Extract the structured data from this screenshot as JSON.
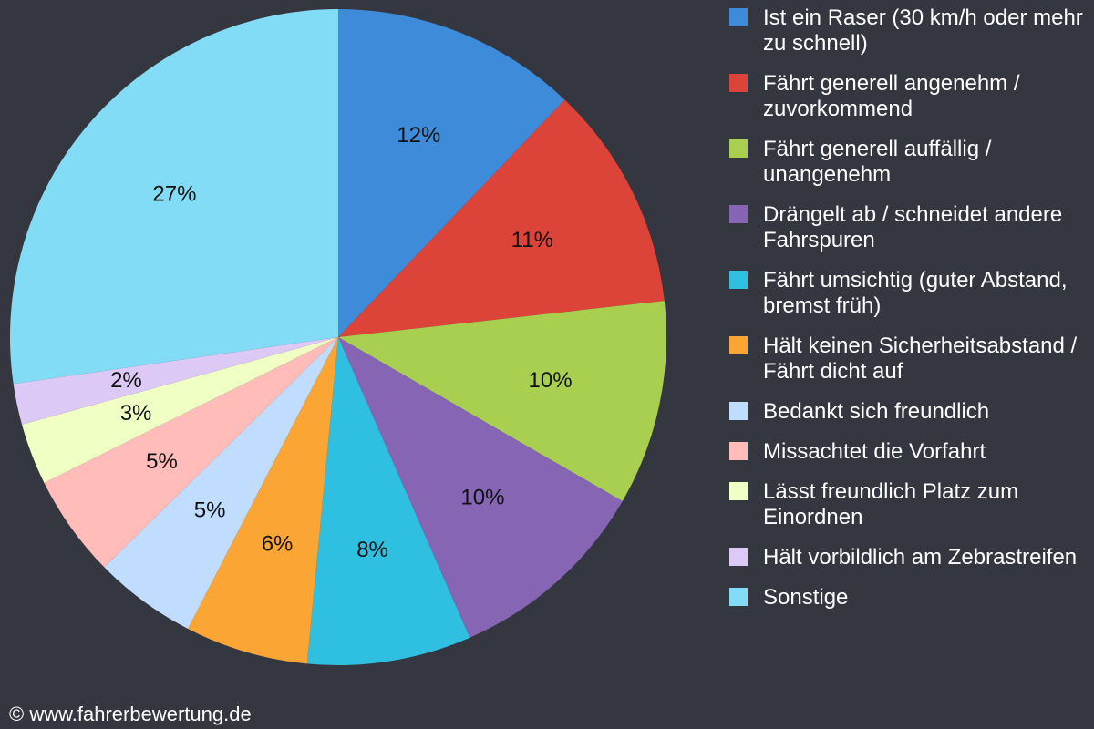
{
  "chart_data": {
    "type": "pie",
    "categories": [
      "Ist ein Raser (30 km/h oder mehr zu schnell)",
      "Fährt generell angenehm / zuvorkommend",
      "Fährt generell auffällig / unangenehm",
      "Drängelt ab / schneidet andere Fahrspuren",
      "Fährt umsichtig (guter Abstand, bremst früh)",
      "Hält keinen Sicherheitsabstand / Fährt dicht auf",
      "Bedankt sich freundlich",
      "Missachtet die Vorfahrt",
      "Lässt freundlich Platz zum Einordnen",
      "Hält vorbildlich am Zebrastreifen",
      "Sonstige"
    ],
    "values": [
      12,
      11,
      10,
      10,
      8,
      6,
      5,
      5,
      3,
      2,
      27
    ],
    "value_labels": [
      "12%",
      "11%",
      "10%",
      "10%",
      "8%",
      "6%",
      "5%",
      "5%",
      "3%",
      "2%",
      "27%"
    ],
    "colors": [
      "#3d8bd9",
      "#dc443a",
      "#a8cf4f",
      "#8565b4",
      "#2fbfe0",
      "#fba534",
      "#c0dcff",
      "#ffbcb8",
      "#f0ffc4",
      "#dcc9f6",
      "#82dcf5"
    ],
    "source": "© www.fahrerbewertung.de"
  }
}
